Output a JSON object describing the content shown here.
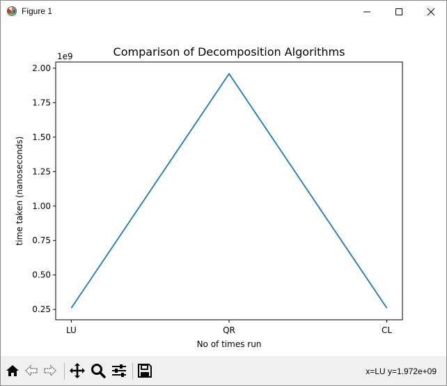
{
  "window": {
    "title": "Figure 1"
  },
  "toolbar": {
    "buttons": [
      "home-icon",
      "back-icon",
      "forward-icon",
      "pan-icon",
      "zoom-icon",
      "configure-icon",
      "save-icon"
    ],
    "coordinates": "x=LU y=1.972e+09"
  },
  "chart_data": {
    "type": "line",
    "title": "Comparison of Decomposition Algorithms",
    "xlabel": "No of times run",
    "ylabel": "time taken (nanoseconds)",
    "offset_text": "1e9",
    "categories": [
      "LU",
      "QR",
      "CL"
    ],
    "series": [
      {
        "values": [
          0.26,
          1.96,
          0.26
        ],
        "color": "#1f77b4"
      }
    ],
    "yticks": [
      "0.25",
      "0.50",
      "0.75",
      "1.00",
      "1.25",
      "1.50",
      "1.75",
      "2.00"
    ],
    "ytick_values": [
      0.25,
      0.5,
      0.75,
      1.0,
      1.25,
      1.5,
      1.75,
      2.0
    ],
    "ylim": [
      0.175,
      2.045
    ],
    "grid": false,
    "legend": false
  }
}
